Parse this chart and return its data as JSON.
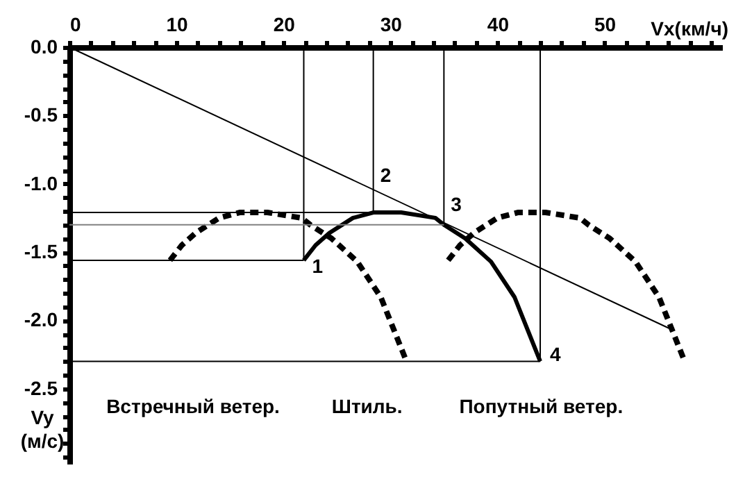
{
  "chart_data": {
    "type": "line",
    "xlabel": "Vx(км/ч)",
    "ylabel": "Vy (м/с)",
    "xlim": [
      0,
      61
    ],
    "ylim": [
      -3.05,
      0
    ],
    "xticks": [
      0,
      {
        "value": 2,
        "label": null
      },
      {
        "value": 4,
        "label": null
      },
      {
        "value": 6,
        "label": null
      },
      {
        "value": 8,
        "label": null
      },
      10,
      {
        "value": 12,
        "label": null
      },
      {
        "value": 14,
        "label": null
      },
      {
        "value": 16,
        "label": null
      },
      {
        "value": 18,
        "label": null
      },
      20,
      {
        "value": 22,
        "label": null
      },
      {
        "value": 24,
        "label": null
      },
      {
        "value": 26,
        "label": null
      },
      {
        "value": 28,
        "label": null
      },
      30,
      {
        "value": 32,
        "label": null
      },
      {
        "value": 34,
        "label": null
      },
      {
        "value": 36,
        "label": null
      },
      {
        "value": 38,
        "label": null
      },
      40,
      {
        "value": 42,
        "label": null
      },
      {
        "value": 44,
        "label": null
      },
      {
        "value": 46,
        "label": null
      },
      {
        "value": 48,
        "label": null
      },
      50,
      {
        "value": 52,
        "label": null
      },
      {
        "value": 54,
        "label": null
      },
      {
        "value": 56,
        "label": null
      },
      {
        "value": 58,
        "label": null
      },
      {
        "value": 60,
        "label": null
      }
    ],
    "yticks": [
      {
        "value": 0,
        "label": "0.0"
      },
      {
        "value": -0.1,
        "label": null
      },
      {
        "value": -0.2,
        "label": null
      },
      {
        "value": -0.3,
        "label": null
      },
      {
        "value": -0.4,
        "label": null
      },
      -0.5,
      {
        "value": -0.6,
        "label": null
      },
      {
        "value": -0.7,
        "label": null
      },
      {
        "value": -0.8,
        "label": null
      },
      {
        "value": -0.9,
        "label": null
      },
      {
        "value": -1,
        "label": "-1.0"
      },
      {
        "value": -1.1,
        "label": null
      },
      {
        "value": -1.2,
        "label": null
      },
      {
        "value": -1.3,
        "label": null
      },
      {
        "value": -1.4,
        "label": null
      },
      -1.5,
      {
        "value": -1.6,
        "label": null
      },
      {
        "value": -1.7,
        "label": null
      },
      {
        "value": -1.8,
        "label": null
      },
      {
        "value": -1.9,
        "label": null
      },
      {
        "value": -2,
        "label": "-2.0"
      },
      {
        "value": -2.1,
        "label": null
      },
      {
        "value": -2.2,
        "label": null
      },
      {
        "value": -2.3,
        "label": null
      },
      {
        "value": -2.4,
        "label": null
      },
      -2.5,
      {
        "value": -2.6,
        "label": null
      },
      {
        "value": -2.7,
        "label": null
      },
      {
        "value": -2.8,
        "label": null
      },
      {
        "value": -2.9,
        "label": null
      },
      {
        "value": -3,
        "label": null
      }
    ],
    "grid": false,
    "marker": "none",
    "series": [
      {
        "color": "#000000",
        "line_style": "dashed",
        "x": [
          9.4,
          10.5,
          11.8,
          14.0,
          15.9,
          18.5,
          21.7,
          22.5,
          24.5,
          26.9,
          29.1,
          31.5
        ],
        "values": [
          -1.56,
          -1.45,
          -1.36,
          -1.25,
          -1.21,
          -1.21,
          -1.25,
          -1.3,
          -1.4,
          -1.57,
          -1.83,
          -2.3
        ]
      },
      {
        "color": "#000000",
        "line_style": "solid",
        "x": [
          21.9,
          23,
          24.3,
          26.5,
          28.4,
          31,
          34.2,
          35,
          37,
          39.4,
          41.6,
          44
        ],
        "values": [
          -1.56,
          -1.45,
          -1.36,
          -1.25,
          -1.21,
          -1.21,
          -1.25,
          -1.3,
          -1.4,
          -1.57,
          -1.83,
          -2.3
        ]
      },
      {
        "color": "#000000",
        "line_style": "dashed",
        "x": [
          35.4,
          36.5,
          37.8,
          40.0,
          41.9,
          44.5,
          47.7,
          48.5,
          50.5,
          52.9,
          55.1,
          57.5
        ],
        "values": [
          -1.56,
          -1.45,
          -1.36,
          -1.25,
          -1.21,
          -1.21,
          -1.25,
          -1.3,
          -1.4,
          -1.57,
          -1.83,
          -2.3
        ]
      },
      {
        "color": "#000000",
        "line_style": "solid",
        "x": [
          0,
          56.1
        ],
        "values": [
          0,
          -2.06
        ]
      },
      {
        "color": "#000000",
        "line_style": "solid",
        "x": [
          21.9,
          21.9
        ],
        "values": [
          0,
          -1.56
        ]
      },
      {
        "color": "#000000",
        "line_style": "solid",
        "x": [
          28.4,
          28.4
        ],
        "values": [
          0,
          -1.21
        ]
      },
      {
        "color": "#000000",
        "line_style": "solid",
        "x": [
          35,
          35
        ],
        "values": [
          0,
          -1.3
        ]
      },
      {
        "color": "#000000",
        "line_style": "solid",
        "x": [
          44,
          44
        ],
        "values": [
          0,
          -2.3
        ]
      },
      {
        "color": "#000000",
        "line_style": "solid",
        "x": [
          0,
          28.4
        ],
        "values": [
          -1.21,
          -1.21
        ]
      },
      {
        "color": "#808080",
        "line_style": "solid",
        "x": [
          0,
          35
        ],
        "values": [
          -1.3,
          -1.3
        ]
      },
      {
        "color": "#000000",
        "line_style": "solid",
        "x": [
          0,
          21.9
        ],
        "values": [
          -1.56,
          -1.56
        ]
      },
      {
        "color": "#000000",
        "line_style": "solid",
        "x": [
          0,
          44
        ],
        "values": [
          -2.3,
          -2.3
        ]
      }
    ],
    "annotations": [
      {
        "text": "1",
        "x": 21.9,
        "y": -1.56
      },
      {
        "text": "2",
        "x": 28.4,
        "y": -1.21
      },
      {
        "text": "3",
        "x": 35,
        "y": -1.3
      },
      {
        "text": "4",
        "x": 44,
        "y": -2.3
      },
      "Встречный ветер.",
      "Штиль.",
      "Попутный ветер."
    ]
  }
}
